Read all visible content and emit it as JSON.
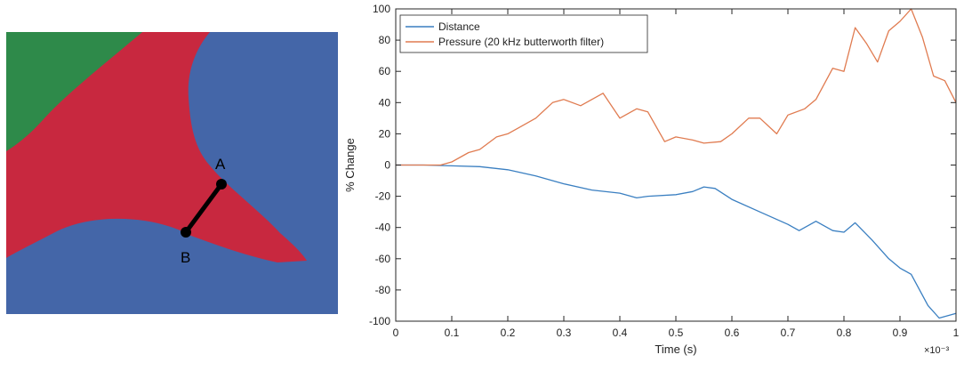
{
  "diagram": {
    "regions": {
      "blue": "#4466a8",
      "red": "#c8283f",
      "green": "#2e8a4a"
    },
    "point_a_label": "A",
    "point_b_label": "B"
  },
  "chart_data": {
    "type": "line",
    "title": "",
    "xlabel": "Time (s)",
    "ylabel": "% Change",
    "x_exponent_label": "×10⁻³",
    "xlim": [
      0,
      1
    ],
    "ylim": [
      -100,
      100
    ],
    "xticks": [
      0,
      0.1,
      0.2,
      0.3,
      0.4,
      0.5,
      0.6,
      0.7,
      0.8,
      0.9,
      1
    ],
    "yticks": [
      -100,
      -80,
      -60,
      -40,
      -20,
      0,
      20,
      40,
      60,
      80,
      100
    ],
    "grid": false,
    "legend_position": "top-left",
    "series": [
      {
        "name": "Distance",
        "color": "#3a7fc1",
        "x": [
          0,
          0.05,
          0.1,
          0.15,
          0.2,
          0.25,
          0.3,
          0.35,
          0.4,
          0.43,
          0.45,
          0.5,
          0.53,
          0.55,
          0.57,
          0.6,
          0.65,
          0.7,
          0.72,
          0.75,
          0.78,
          0.8,
          0.82,
          0.85,
          0.88,
          0.9,
          0.92,
          0.95,
          0.97,
          1.0
        ],
        "y": [
          0,
          0,
          -0.5,
          -1,
          -3,
          -7,
          -12,
          -16,
          -18,
          -21,
          -20,
          -19,
          -17,
          -14,
          -15,
          -22,
          -30,
          -38,
          -42,
          -36,
          -42,
          -43,
          -37,
          -48,
          -60,
          -66,
          -70,
          -90,
          -98,
          -95
        ]
      },
      {
        "name": "Pressure (20 kHz butterworth filter)",
        "color": "#e07b50",
        "x": [
          0,
          0.05,
          0.08,
          0.1,
          0.13,
          0.15,
          0.18,
          0.2,
          0.22,
          0.25,
          0.28,
          0.3,
          0.33,
          0.35,
          0.37,
          0.4,
          0.43,
          0.45,
          0.48,
          0.5,
          0.53,
          0.55,
          0.58,
          0.6,
          0.63,
          0.65,
          0.68,
          0.7,
          0.73,
          0.75,
          0.78,
          0.8,
          0.82,
          0.84,
          0.86,
          0.88,
          0.9,
          0.92,
          0.94,
          0.96,
          0.98,
          1.0
        ],
        "y": [
          0,
          0,
          0,
          2,
          8,
          10,
          18,
          20,
          24,
          30,
          40,
          42,
          38,
          42,
          46,
          30,
          36,
          34,
          15,
          18,
          16,
          14,
          15,
          20,
          30,
          30,
          20,
          32,
          36,
          42,
          62,
          60,
          88,
          78,
          66,
          86,
          92,
          100,
          82,
          57,
          54,
          40
        ]
      }
    ]
  }
}
